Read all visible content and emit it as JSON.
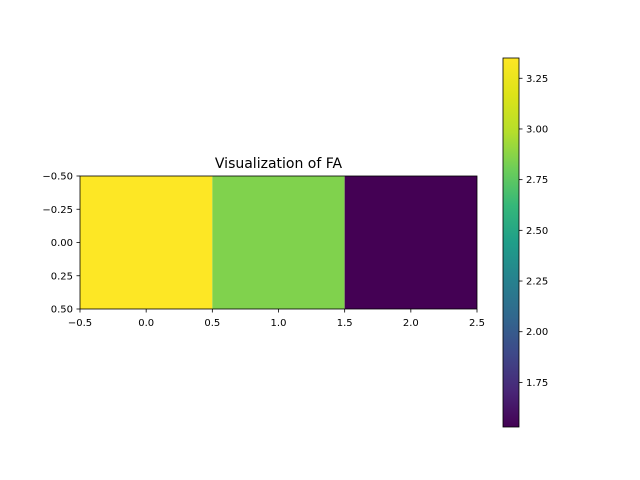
{
  "chart_data": {
    "type": "heatmap",
    "title": "Visualization of FA",
    "xlabel": "",
    "ylabel": "",
    "values": [
      [
        3.35,
        2.85,
        1.53
      ]
    ],
    "xlim": [
      -0.5,
      2.5
    ],
    "ylim": [
      0.5,
      -0.5
    ],
    "x_ticks": [
      "-0.5",
      "0.0",
      "0.5",
      "1.0",
      "1.5",
      "2.0",
      "2.5"
    ],
    "y_ticks": [
      "-0.50",
      "-0.25",
      "0.00",
      "0.25",
      "0.50"
    ],
    "grid": false,
    "colormap": "viridis",
    "colorbar": {
      "min": 1.53,
      "max": 3.35,
      "ticks": [
        "1.75",
        "2.00",
        "2.25",
        "2.50",
        "2.75",
        "3.00",
        "3.25"
      ]
    },
    "colors": {
      "low": "#440154",
      "mid": "#21918c",
      "high": "#fde725"
    }
  }
}
